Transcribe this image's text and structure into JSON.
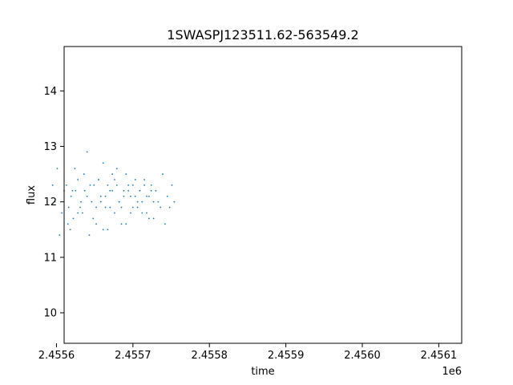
{
  "chart_data": {
    "type": "scatter",
    "title": "1SWASPJ123511.62-563549.2",
    "xlabel": "time",
    "ylabel": "flux",
    "x_offset_label": "1e6",
    "xlim": [
      2.45561,
      2.45613
    ],
    "ylim": [
      9.45,
      14.8
    ],
    "grid": false,
    "point_color": "#1f77b4",
    "x_ticks": [
      {
        "value": 2.4556,
        "label": "2.4556"
      },
      {
        "value": 2.4557,
        "label": "2.4557"
      },
      {
        "value": 2.4558,
        "label": "2.4558"
      },
      {
        "value": 2.4559,
        "label": "2.4559"
      },
      {
        "value": 2.456,
        "label": "2.4560"
      },
      {
        "value": 2.4561,
        "label": "2.4561"
      }
    ],
    "y_ticks": [
      {
        "value": 10,
        "label": "10"
      },
      {
        "value": 11,
        "label": "11"
      },
      {
        "value": 12,
        "label": "12"
      },
      {
        "value": 13,
        "label": "13"
      },
      {
        "value": 14,
        "label": "14"
      }
    ],
    "series": [
      {
        "x": [
          2.455615,
          2.455618,
          2.455621,
          2.455624,
          2.455628,
          2.455632,
          2.455636,
          2.45564,
          2.455644,
          2.455648,
          2.455652,
          2.455655,
          2.455658,
          2.455661,
          2.455664,
          2.455667,
          2.45567,
          2.455673,
          2.455676,
          2.455679,
          2.455682,
          2.455685,
          2.455688,
          2.455691,
          2.455694,
          2.455697,
          2.4557,
          2.455703,
          2.455706,
          2.455709,
          2.455712,
          2.455715,
          2.455718,
          2.455721,
          2.455724,
          2.455727,
          2.45573,
          2.455733,
          2.455736,
          2.455739,
          2.455742,
          2.455745,
          2.455748,
          2.455751,
          2.455754,
          2.455595,
          2.455598,
          2.455601,
          2.455604,
          2.455607,
          2.45561,
          2.455613,
          2.455616,
          2.455619,
          2.455622,
          2.455625,
          2.455628,
          2.455631,
          2.455634,
          2.455637,
          2.45564,
          2.455643,
          2.455646,
          2.455649,
          2.455652,
          2.455655,
          2.455658,
          2.455661,
          2.455664,
          2.455667,
          2.45567,
          2.455673,
          2.455676,
          2.455679,
          2.455682,
          2.455685,
          2.455688,
          2.455691,
          2.455694,
          2.455697,
          2.4557,
          2.455703,
          2.455706,
          2.455709,
          2.455712,
          2.455715,
          2.455718,
          2.455721,
          2.455724,
          2.455727
        ],
        "y": [
          11.6,
          11.5,
          12.2,
          12.6,
          11.8,
          12.0,
          12.5,
          12.9,
          12.3,
          11.7,
          11.9,
          12.4,
          12.0,
          11.5,
          12.1,
          12.3,
          11.9,
          12.2,
          12.4,
          12.6,
          12.0,
          11.6,
          12.1,
          12.5,
          12.2,
          11.8,
          12.3,
          12.1,
          11.9,
          12.2,
          12.0,
          12.4,
          11.8,
          12.1,
          12.3,
          11.7,
          12.2,
          12.0,
          11.9,
          12.5,
          11.6,
          12.1,
          11.9,
          12.3,
          12.0,
          12.3,
          12.0,
          12.6,
          11.4,
          11.8,
          12.2,
          12.3,
          11.9,
          12.1,
          11.7,
          12.2,
          12.4,
          11.9,
          11.8,
          12.2,
          12.1,
          11.4,
          12.0,
          12.3,
          11.6,
          12.4,
          12.1,
          12.7,
          11.9,
          11.5,
          12.2,
          12.5,
          11.8,
          12.3,
          12.0,
          11.9,
          12.2,
          11.6,
          12.3,
          12.1,
          11.9,
          12.4,
          12.0,
          12.2,
          11.8,
          12.3,
          12.1,
          11.7,
          12.2,
          12.0
        ]
      }
    ]
  }
}
